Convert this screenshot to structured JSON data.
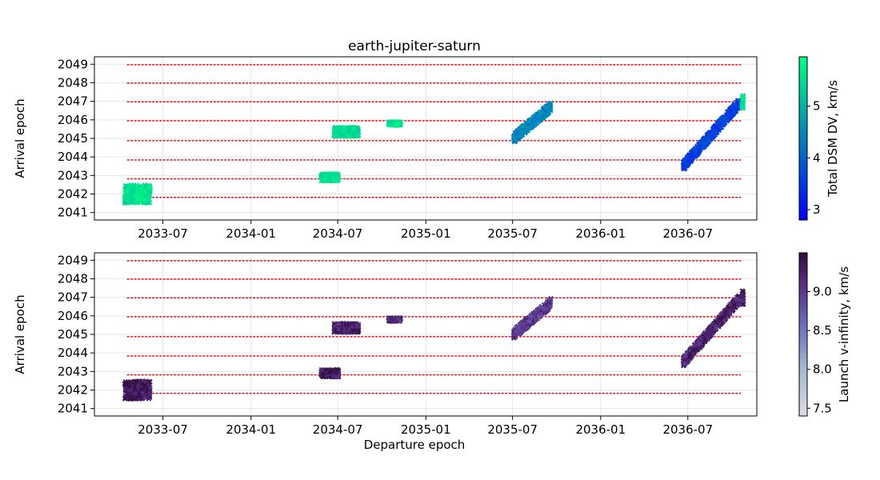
{
  "chart_data": [
    {
      "type": "scatter",
      "title": "earth-jupiter-saturn",
      "xlabel": "",
      "ylabel": "Arrival epoch",
      "x_ticks": [
        "2033-07",
        "2034-01",
        "2034-07",
        "2035-01",
        "2035-07",
        "2036-01",
        "2036-07"
      ],
      "y_ticks": [
        "2041",
        "2042",
        "2043",
        "2044",
        "2045",
        "2046",
        "2047",
        "2048",
        "2049"
      ],
      "xlim": [
        "2033-02-08",
        "2036-11-22"
      ],
      "ylim": [
        2040.6,
        2049.4
      ],
      "grid": true,
      "colorbar": {
        "label": "Total DSM DV, km/s",
        "ticks": [
          "3",
          "4",
          "5"
        ],
        "range": [
          2.8,
          5.95
        ],
        "colormap": "winter"
      },
      "reference_lines": {
        "color": "#e8000b",
        "style": "dashed",
        "x_range": [
          "2033-04-17",
          "2036-10-20"
        ],
        "y": [
          2041.82,
          2042.82,
          2043.84,
          2044.88,
          2045.95,
          2046.97,
          2047.98,
          2048.97
        ]
      },
      "clusters": [
        {
          "x_range": [
            "2033-04-12",
            "2033-06-05"
          ],
          "y_range": [
            2041.5,
            2042.5
          ],
          "value": 5.6
        },
        {
          "x_range": [
            "2034-05-27",
            "2034-07-03"
          ],
          "y_range": [
            2042.7,
            2043.1
          ],
          "value": 5.6
        },
        {
          "x_range": [
            "2034-06-23",
            "2034-08-14"
          ],
          "y_range": [
            2045.1,
            2045.6
          ],
          "value": 5.5
        },
        {
          "x_range": [
            "2034-10-15",
            "2034-11-10"
          ],
          "y_range": [
            2045.7,
            2045.9
          ],
          "value": 5.6
        },
        {
          "x_range": [
            "2035-07-03",
            "2035-09-19"
          ],
          "y_range": [
            2045.0,
            2046.7
          ],
          "value": 4.5
        },
        {
          "x_range": [
            "2036-06-21",
            "2036-10-16"
          ],
          "y_range": [
            2043.5,
            2046.9
          ],
          "value": 3.6
        },
        {
          "x_range": [
            "2036-10-22",
            "2036-10-26"
          ],
          "y_range": [
            2046.6,
            2047.4
          ],
          "value": 5.6
        }
      ]
    },
    {
      "type": "scatter",
      "title": "",
      "xlabel": "Departure epoch",
      "ylabel": "Arrival epoch",
      "x_ticks": [
        "2033-07",
        "2034-01",
        "2034-07",
        "2035-01",
        "2035-07",
        "2036-01",
        "2036-07"
      ],
      "y_ticks": [
        "2041",
        "2042",
        "2043",
        "2044",
        "2045",
        "2046",
        "2047",
        "2048",
        "2049"
      ],
      "xlim": [
        "2033-02-08",
        "2036-11-22"
      ],
      "ylim": [
        2040.6,
        2049.4
      ],
      "grid": true,
      "colorbar": {
        "label": "Launch v-infinity, km/s",
        "ticks": [
          "7.5",
          "8.0",
          "8.5",
          "9.0"
        ],
        "range": [
          7.4,
          9.5
        ],
        "colormap": "twilight"
      },
      "reference_lines": {
        "color": "#e8000b",
        "style": "dashed",
        "x_range": [
          "2033-04-17",
          "2036-10-20"
        ],
        "y": [
          2041.82,
          2042.82,
          2043.84,
          2044.88,
          2045.95,
          2046.97,
          2047.98,
          2048.97
        ]
      },
      "clusters": [
        {
          "x_range": [
            "2033-04-12",
            "2033-06-05"
          ],
          "y_range": [
            2041.5,
            2042.5
          ],
          "value": 9.3
        },
        {
          "x_range": [
            "2034-05-27",
            "2034-07-03"
          ],
          "y_range": [
            2042.7,
            2043.1
          ],
          "value": 9.3
        },
        {
          "x_range": [
            "2034-06-23",
            "2034-08-14"
          ],
          "y_range": [
            2045.1,
            2045.6
          ],
          "value": 9.3
        },
        {
          "x_range": [
            "2034-10-15",
            "2034-11-10"
          ],
          "y_range": [
            2045.7,
            2045.9
          ],
          "value": 9.1
        },
        {
          "x_range": [
            "2035-07-03",
            "2035-09-19"
          ],
          "y_range": [
            2045.0,
            2046.7
          ],
          "value": 9.0
        },
        {
          "x_range": [
            "2036-06-21",
            "2036-10-16"
          ],
          "y_range": [
            2043.5,
            2046.9
          ],
          "value": 9.2
        },
        {
          "x_range": [
            "2036-10-22",
            "2036-10-26"
          ],
          "y_range": [
            2046.6,
            2047.4
          ],
          "value": 9.2
        }
      ]
    }
  ]
}
